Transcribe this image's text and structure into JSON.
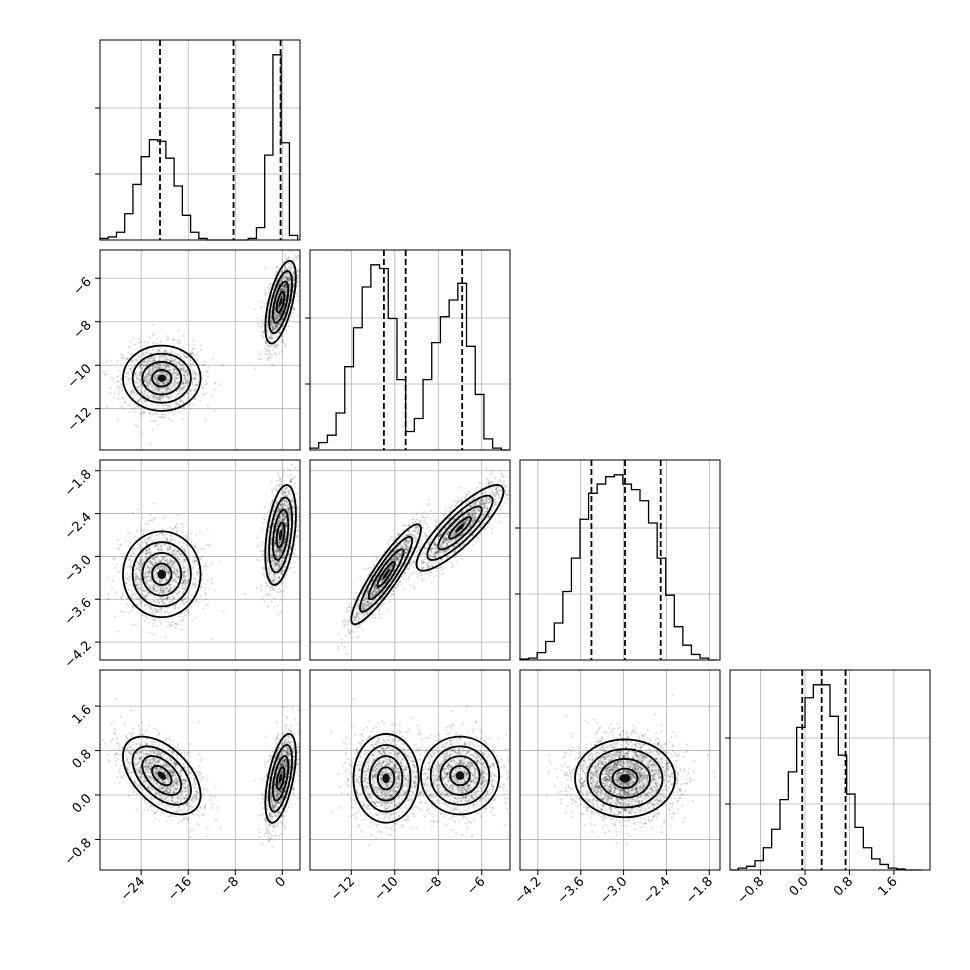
{
  "chart_data": {
    "type": "corner",
    "parameters": [
      {
        "range": [
          -31,
          3
        ],
        "ticks": [
          -24,
          -16,
          -8,
          0
        ],
        "tick_labels": [
          "−24",
          "−16",
          "−8",
          "0"
        ],
        "quantiles": [
          -20.8,
          -8.3,
          -0.3
        ],
        "hist_bins": [
          -31,
          -29.6,
          -28.2,
          -26.8,
          -25.4,
          -24.0,
          -22.6,
          -21.2,
          -19.8,
          -18.4,
          -17.0,
          -15.6,
          -14.2,
          -12.8,
          -11.4,
          -10.0,
          -8.6,
          -7.2,
          -5.8,
          -4.4,
          -3.0,
          -1.6,
          -0.2,
          1.2,
          2.6
        ],
        "hist_counts": [
          0.01,
          0.02,
          0.05,
          0.17,
          0.36,
          0.54,
          0.65,
          0.64,
          0.53,
          0.35,
          0.16,
          0.05,
          0.01,
          0.0,
          0.0,
          0.0,
          0.0,
          0.0,
          0.01,
          0.08,
          0.55,
          1.2,
          0.63,
          0.03
        ]
      },
      {
        "range": [
          -13.9,
          -4.7
        ],
        "ticks": [
          -12,
          -10,
          -8,
          -6
        ],
        "tick_labels": [
          "−12",
          "−10",
          "−8",
          "−6"
        ],
        "quantiles": [
          -10.5,
          -9.5,
          -6.9
        ],
        "hist_bins": [
          -13.9,
          -13.5,
          -13.1,
          -12.7,
          -12.3,
          -11.9,
          -11.5,
          -11.1,
          -10.7,
          -10.3,
          -9.9,
          -9.5,
          -9.1,
          -8.7,
          -8.3,
          -7.9,
          -7.5,
          -7.1,
          -6.7,
          -6.3,
          -5.9,
          -5.5,
          -5.1,
          -4.7
        ],
        "hist_counts": [
          0.01,
          0.04,
          0.08,
          0.2,
          0.45,
          0.66,
          0.88,
          1.0,
          0.98,
          0.71,
          0.38,
          0.1,
          0.17,
          0.38,
          0.58,
          0.72,
          0.81,
          0.9,
          0.56,
          0.3,
          0.06,
          0.01,
          0.0
        ]
      },
      {
        "range": [
          -4.45,
          -1.65
        ],
        "ticks": [
          -4.2,
          -3.6,
          -3.0,
          -2.4,
          -1.8
        ],
        "tick_labels": [
          "−4.2",
          "−3.6",
          "−3.0",
          "−2.4",
          "−1.8"
        ],
        "quantiles": [
          -3.45,
          -2.98,
          -2.48
        ],
        "hist_bins": [
          -4.45,
          -4.33,
          -4.21,
          -4.09,
          -3.97,
          -3.85,
          -3.73,
          -3.61,
          -3.49,
          -3.37,
          -3.25,
          -3.13,
          -3.01,
          -2.89,
          -2.77,
          -2.65,
          -2.53,
          -2.41,
          -2.29,
          -2.17,
          -2.05,
          -1.93,
          -1.81,
          -1.69
        ],
        "hist_counts": [
          0.005,
          0.01,
          0.04,
          0.1,
          0.2,
          0.37,
          0.55,
          0.76,
          0.9,
          0.95,
          0.99,
          1.0,
          0.95,
          0.92,
          0.86,
          0.74,
          0.55,
          0.35,
          0.18,
          0.08,
          0.03,
          0.01,
          0.0
        ]
      },
      {
        "range": [
          -1.35,
          2.25
        ],
        "ticks": [
          -0.8,
          0.0,
          0.8,
          1.6
        ],
        "tick_labels": [
          "−0.8",
          "0.0",
          "0.8",
          "1.6"
        ],
        "quantiles": [
          -0.05,
          0.3,
          0.73
        ],
        "hist_bins": [
          -1.35,
          -1.2,
          -1.05,
          -0.9,
          -0.75,
          -0.6,
          -0.45,
          -0.3,
          -0.15,
          0.0,
          0.15,
          0.3,
          0.45,
          0.6,
          0.75,
          0.9,
          1.05,
          1.2,
          1.35,
          1.5,
          1.65,
          1.8,
          1.95,
          2.1
        ],
        "hist_counts": [
          0.0,
          0.01,
          0.02,
          0.05,
          0.12,
          0.22,
          0.38,
          0.53,
          0.77,
          0.93,
          1.0,
          1.0,
          0.83,
          0.62,
          0.41,
          0.23,
          0.12,
          0.06,
          0.03,
          0.01,
          0.005,
          0.0,
          0.0
        ]
      }
    ],
    "pairs": [
      {
        "col": 0,
        "row": 1,
        "clusters": [
          {
            "cx": -20.5,
            "cy": -10.6,
            "sx": 3.3,
            "sy": 0.75,
            "rho": 0.0,
            "n": 1400
          },
          {
            "cx": -0.3,
            "cy": -7.1,
            "sx": 1.3,
            "sy": 0.95,
            "rho": 0.6,
            "n": 1400
          }
        ]
      },
      {
        "col": 0,
        "row": 2,
        "clusters": [
          {
            "cx": -20.5,
            "cy": -3.25,
            "sx": 3.3,
            "sy": 0.3,
            "rho": 0.0,
            "n": 1400
          },
          {
            "cx": -0.3,
            "cy": -2.7,
            "sx": 1.3,
            "sy": 0.35,
            "rho": 0.4,
            "n": 1400
          }
        ]
      },
      {
        "col": 0,
        "row": 3,
        "clusters": [
          {
            "cx": -20.5,
            "cy": 0.35,
            "sx": 3.3,
            "sy": 0.35,
            "rho": -0.5,
            "n": 1400
          },
          {
            "cx": -0.3,
            "cy": 0.3,
            "sx": 1.3,
            "sy": 0.4,
            "rho": 0.55,
            "n": 1400
          }
        ]
      },
      {
        "col": 1,
        "row": 2,
        "clusters": [
          {
            "cx": -10.4,
            "cy": -3.25,
            "sx": 0.8,
            "sy": 0.35,
            "rho": 0.9,
            "n": 1400
          },
          {
            "cx": -7.0,
            "cy": -2.6,
            "sx": 1.0,
            "sy": 0.3,
            "rho": 0.85,
            "n": 1400
          }
        ]
      },
      {
        "col": 1,
        "row": 3,
        "clusters": [
          {
            "cx": -10.4,
            "cy": 0.3,
            "sx": 0.75,
            "sy": 0.4,
            "rho": 0.0,
            "n": 1400
          },
          {
            "cx": -7.0,
            "cy": 0.35,
            "sx": 0.9,
            "sy": 0.35,
            "rho": 0.0,
            "n": 1400
          }
        ]
      },
      {
        "col": 2,
        "row": 3,
        "clusters": [
          {
            "cx": -2.98,
            "cy": 0.3,
            "sx": 0.35,
            "sy": 0.35,
            "rho": 0.0,
            "n": 2800
          }
        ]
      }
    ]
  }
}
